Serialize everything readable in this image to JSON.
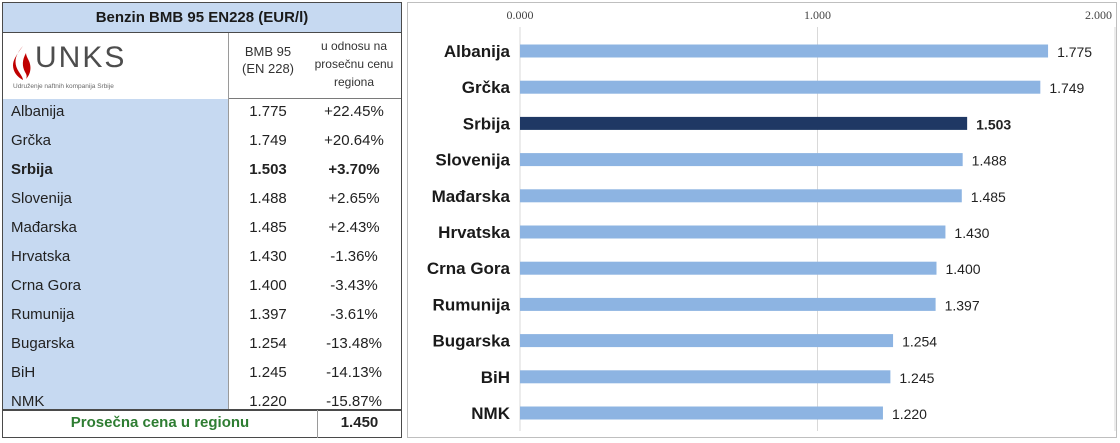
{
  "table": {
    "title": "Benzin BMB 95 EN228 (EUR/l)",
    "logo": {
      "name": "UNKS",
      "tagline": "Udruženje naftnih kompanija Srbije"
    },
    "col_price_header": [
      "BMB 95",
      "(EN 228)"
    ],
    "col_pct_header": [
      "u odnosu na",
      "prosečnu cenu",
      "regiona"
    ],
    "rows": [
      {
        "country": "Albanija",
        "price": "1.775",
        "pct": "+22.45%"
      },
      {
        "country": "Grčka",
        "price": "1.749",
        "pct": "+20.64%"
      },
      {
        "country": "Srbija",
        "price": "1.503",
        "pct": "+3.70%"
      },
      {
        "country": "Slovenija",
        "price": "1.488",
        "pct": "+2.65%"
      },
      {
        "country": "Mađarska",
        "price": "1.485",
        "pct": "+2.43%"
      },
      {
        "country": "Hrvatska",
        "price": "1.430",
        "pct": "-1.36%"
      },
      {
        "country": "Crna Gora",
        "price": "1.400",
        "pct": "-3.43%"
      },
      {
        "country": "Rumunija",
        "price": "1.397",
        "pct": "-3.61%"
      },
      {
        "country": "Bugarska",
        "price": "1.254",
        "pct": "-13.48%"
      },
      {
        "country": "BiH",
        "price": "1.245",
        "pct": "-14.13%"
      },
      {
        "country": "NMK",
        "price": "1.220",
        "pct": "-15.87%"
      }
    ],
    "footer_label": "Prosečna cena u regionu",
    "footer_value": "1.450"
  },
  "chart_data": {
    "type": "bar",
    "orientation": "horizontal",
    "categories": [
      "Albanija",
      "Grčka",
      "Srbija",
      "Slovenija",
      "Mađarska",
      "Hrvatska",
      "Crna Gora",
      "Rumunija",
      "Bugarska",
      "BiH",
      "NMK"
    ],
    "values": [
      1.775,
      1.749,
      1.503,
      1.488,
      1.485,
      1.43,
      1.4,
      1.397,
      1.254,
      1.245,
      1.22
    ],
    "value_labels": [
      "1.775",
      "1.749",
      "1.503",
      "1.488",
      "1.485",
      "1.430",
      "1.400",
      "1.397",
      "1.254",
      "1.245",
      "1.220"
    ],
    "xlim": [
      0,
      2
    ],
    "xticks": [
      0,
      1,
      2
    ],
    "xtick_labels": [
      "0.000",
      "1.000",
      "2.000"
    ],
    "x_axis_position": "top",
    "grid": true,
    "highlight_category": "Srbija",
    "colors": {
      "bar": "#8db4e2",
      "highlight": "#1f3864",
      "grid": "#d9d9d9"
    }
  },
  "colors": {
    "table_header_bg": "#c6d9f1",
    "footer_label": "#2e7d32",
    "logo_red": "#c00000"
  }
}
